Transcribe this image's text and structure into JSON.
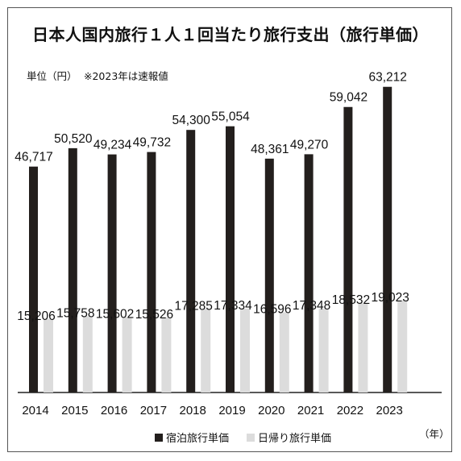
{
  "chart_data": {
    "type": "bar",
    "title": "日本人国内旅行１人１回当たり旅行支出（旅行単価）",
    "unit_label": "単位（円）",
    "note": "※2023年は速報値",
    "x_suffix": "（年）",
    "categories": [
      "2014",
      "2015",
      "2016",
      "2017",
      "2018",
      "2019",
      "2020",
      "2021",
      "2022",
      "2023"
    ],
    "series": [
      {
        "name": "宿泊旅行単価",
        "color": "#231f1d",
        "values": [
          46717,
          50520,
          49234,
          49732,
          54300,
          55054,
          48361,
          49270,
          59042,
          63212
        ],
        "labels": [
          "46,717",
          "50,520",
          "49,234",
          "49,732",
          "54,300",
          "55,054",
          "48,361",
          "49,270",
          "59,042",
          "63,212"
        ]
      },
      {
        "name": "日帰り旅行単価",
        "color": "#dcdcdc",
        "values": [
          15206,
          15758,
          15602,
          15526,
          17285,
          17334,
          16596,
          17348,
          18532,
          19023
        ],
        "labels": [
          "15,206",
          "15,758",
          "15,602",
          "15,526",
          "17,285",
          "17,334",
          "16,596",
          "17,348",
          "18,532",
          "19,023"
        ]
      }
    ],
    "ylim": [
      0,
      64000
    ],
    "grid": false,
    "legend_position": "bottom"
  }
}
